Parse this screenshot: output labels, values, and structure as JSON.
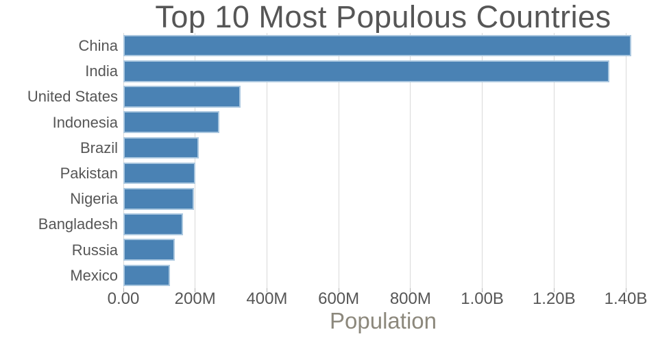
{
  "figure": {
    "title": "Top 10 Most Populous Countries",
    "background_color": "#ffffff"
  },
  "chart_data": {
    "type": "bar",
    "orientation": "horizontal",
    "title": "Top 10 Most Populous Countries",
    "xlabel": "Population",
    "ylabel": "",
    "categories": [
      "China",
      "India",
      "United States",
      "Indonesia",
      "Brazil",
      "Pakistan",
      "Nigeria",
      "Bangladesh",
      "Russia",
      "Mexico"
    ],
    "values": [
      1415045928,
      1354051854,
      326766748,
      266794980,
      210867954,
      200813818,
      195875237,
      166368149,
      143964709,
      130759074
    ],
    "x_ticks": [
      {
        "value": 0,
        "label": "0.00"
      },
      {
        "value": 200000000,
        "label": "200M"
      },
      {
        "value": 400000000,
        "label": "400M"
      },
      {
        "value": 600000000,
        "label": "600M"
      },
      {
        "value": 800000000,
        "label": "800M"
      },
      {
        "value": 1000000000,
        "label": "1.00B"
      },
      {
        "value": 1200000000,
        "label": "1.20B"
      },
      {
        "value": 1400000000,
        "label": "1.40B"
      }
    ],
    "xlim": [
      0,
      1447700000
    ],
    "grid": true,
    "legend": false,
    "colors": {
      "bar_fill": "#4a82b4",
      "bar_edge": "#aac7df",
      "gridline": "#d9d9d9",
      "tick_mark": "#b3b3b3",
      "title_text": "#565656",
      "tick_label_text": "#565656",
      "category_label_text": "#565656",
      "axis_title_text": "#8c887c"
    }
  }
}
